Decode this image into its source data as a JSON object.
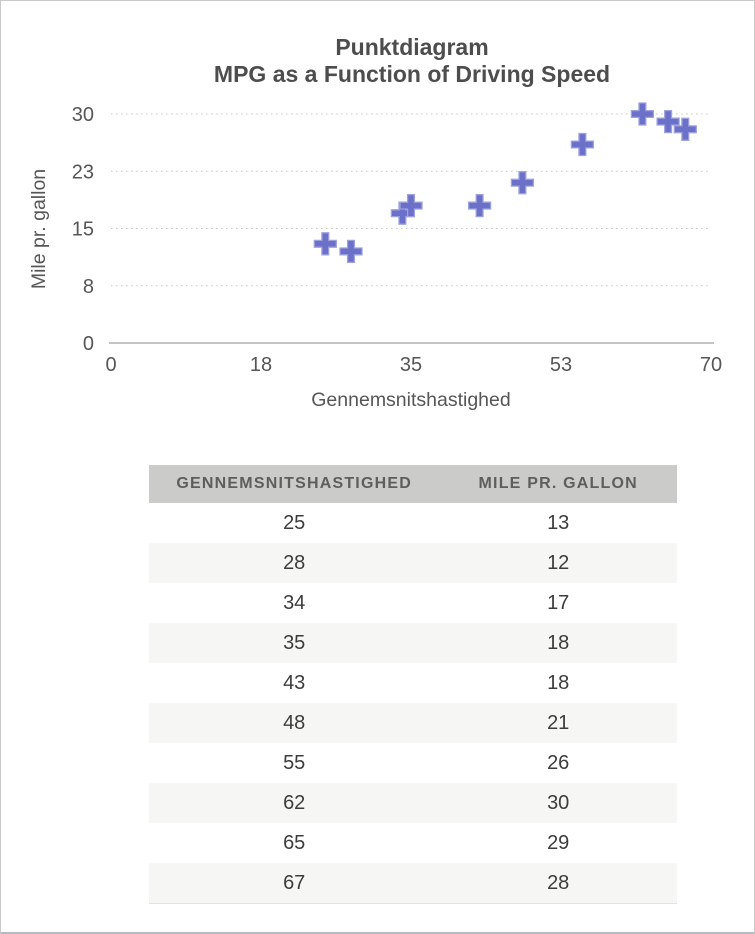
{
  "window": {
    "background": "#ffffff",
    "border_color": "#c9c9c9",
    "border_bottom_color": "#b6bbc1"
  },
  "chart_data": {
    "type": "scatter",
    "title": "Punktdiagram",
    "subtitle": "MPG as a Function of Driving Speed",
    "xlabel": "Gennemsnitshastighed",
    "ylabel": "Mile pr. gallon",
    "xlim": [
      0,
      70
    ],
    "ylim": [
      0,
      30
    ],
    "x_ticks": [
      {
        "value": 0,
        "label": "0"
      },
      {
        "value": 17.5,
        "label": "18"
      },
      {
        "value": 35,
        "label": "35"
      },
      {
        "value": 52.5,
        "label": "53"
      },
      {
        "value": 70,
        "label": "70"
      }
    ],
    "y_ticks": [
      {
        "value": 0,
        "label": "0"
      },
      {
        "value": 7.5,
        "label": "8"
      },
      {
        "value": 15,
        "label": "15"
      },
      {
        "value": 22.5,
        "label": "23"
      },
      {
        "value": 30,
        "label": "30"
      }
    ],
    "points": [
      {
        "x": 25,
        "y": 13
      },
      {
        "x": 28,
        "y": 12
      },
      {
        "x": 34,
        "y": 17
      },
      {
        "x": 35,
        "y": 18
      },
      {
        "x": 43,
        "y": 18
      },
      {
        "x": 48,
        "y": 21
      },
      {
        "x": 55,
        "y": 26
      },
      {
        "x": 62,
        "y": 30
      },
      {
        "x": 65,
        "y": 29
      },
      {
        "x": 67,
        "y": 28
      }
    ],
    "grid": "horizontal-dotted",
    "legend": "none",
    "marker": "plus",
    "colors": {
      "marker_fill": "#6b70c8",
      "marker_edge": "#9da1dd",
      "gridline": "#c9c9c9",
      "axis_line": "#b0b0b0",
      "tick_text": "#565656",
      "axis_title_text": "#565656",
      "title_text": "#4d4d4d"
    }
  },
  "table": {
    "headers": [
      "GENNEMSNITSHASTIGHED",
      "MILE PR. GALLON"
    ],
    "rows": [
      [
        "25",
        "13"
      ],
      [
        "28",
        "12"
      ],
      [
        "34",
        "17"
      ],
      [
        "35",
        "18"
      ],
      [
        "43",
        "18"
      ],
      [
        "48",
        "21"
      ],
      [
        "55",
        "26"
      ],
      [
        "62",
        "30"
      ],
      [
        "65",
        "29"
      ],
      [
        "67",
        "28"
      ]
    ],
    "colors": {
      "header_bg": "#cbcbc9",
      "header_text": "#5e5e5c",
      "row_bg": "#ffffff",
      "alt_row_bg": "#f6f6f4",
      "cell_text": "#3c3c3c",
      "table_bottom_border": "#e3e3e1"
    }
  }
}
